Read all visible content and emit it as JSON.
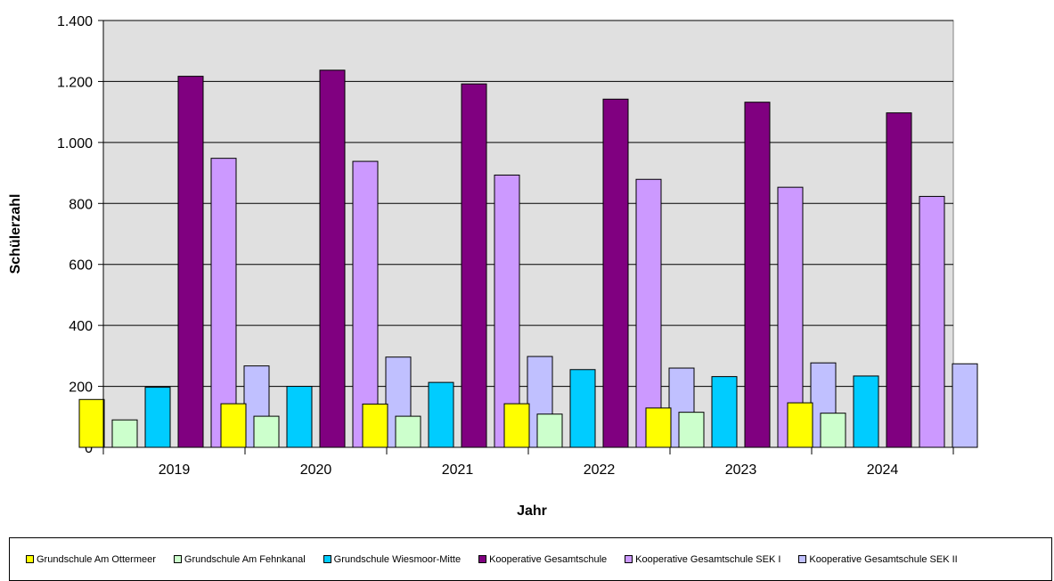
{
  "chart_data": {
    "type": "bar",
    "title": "",
    "xlabel": "Jahr",
    "ylabel": "Schülerzahl",
    "categories": [
      "2019",
      "2020",
      "2021",
      "2022",
      "2023",
      "2024"
    ],
    "ylim": [
      0,
      1400
    ],
    "yticks": [
      0,
      200,
      400,
      600,
      800,
      1000,
      1200,
      1400
    ],
    "ytick_labels": [
      "0",
      "200",
      "400",
      "600",
      "800",
      "1.000",
      "1.200",
      "1.400"
    ],
    "grid": true,
    "legend_position": "bottom",
    "plot_background": "#e0e0e0",
    "series": [
      {
        "name": "Grundschule Am Ottermeer",
        "color": "#ffff00",
        "values": [
          157,
          143,
          142,
          143,
          129,
          146
        ]
      },
      {
        "name": "Grundschule Am Fehnkanal",
        "color": "#ccffcc",
        "values": [
          90,
          102,
          102,
          109,
          115,
          112
        ]
      },
      {
        "name": "Grundschule Wiesmoor-Mitte",
        "color": "#00ccff",
        "values": [
          197,
          200,
          213,
          255,
          232,
          234
        ]
      },
      {
        "name": "Kooperative Gesamtschule",
        "color": "#800080",
        "values": [
          1217,
          1237,
          1192,
          1142,
          1132,
          1097
        ]
      },
      {
        "name": "Kooperative Gesamtschule SEK I",
        "color": "#cc99ff",
        "values": [
          948,
          938,
          893,
          879,
          853,
          823
        ]
      },
      {
        "name": "Kooperative Gesamtschule SEK II",
        "color": "#c0c0ff",
        "values": [
          267,
          296,
          298,
          260,
          277,
          274
        ]
      }
    ]
  }
}
